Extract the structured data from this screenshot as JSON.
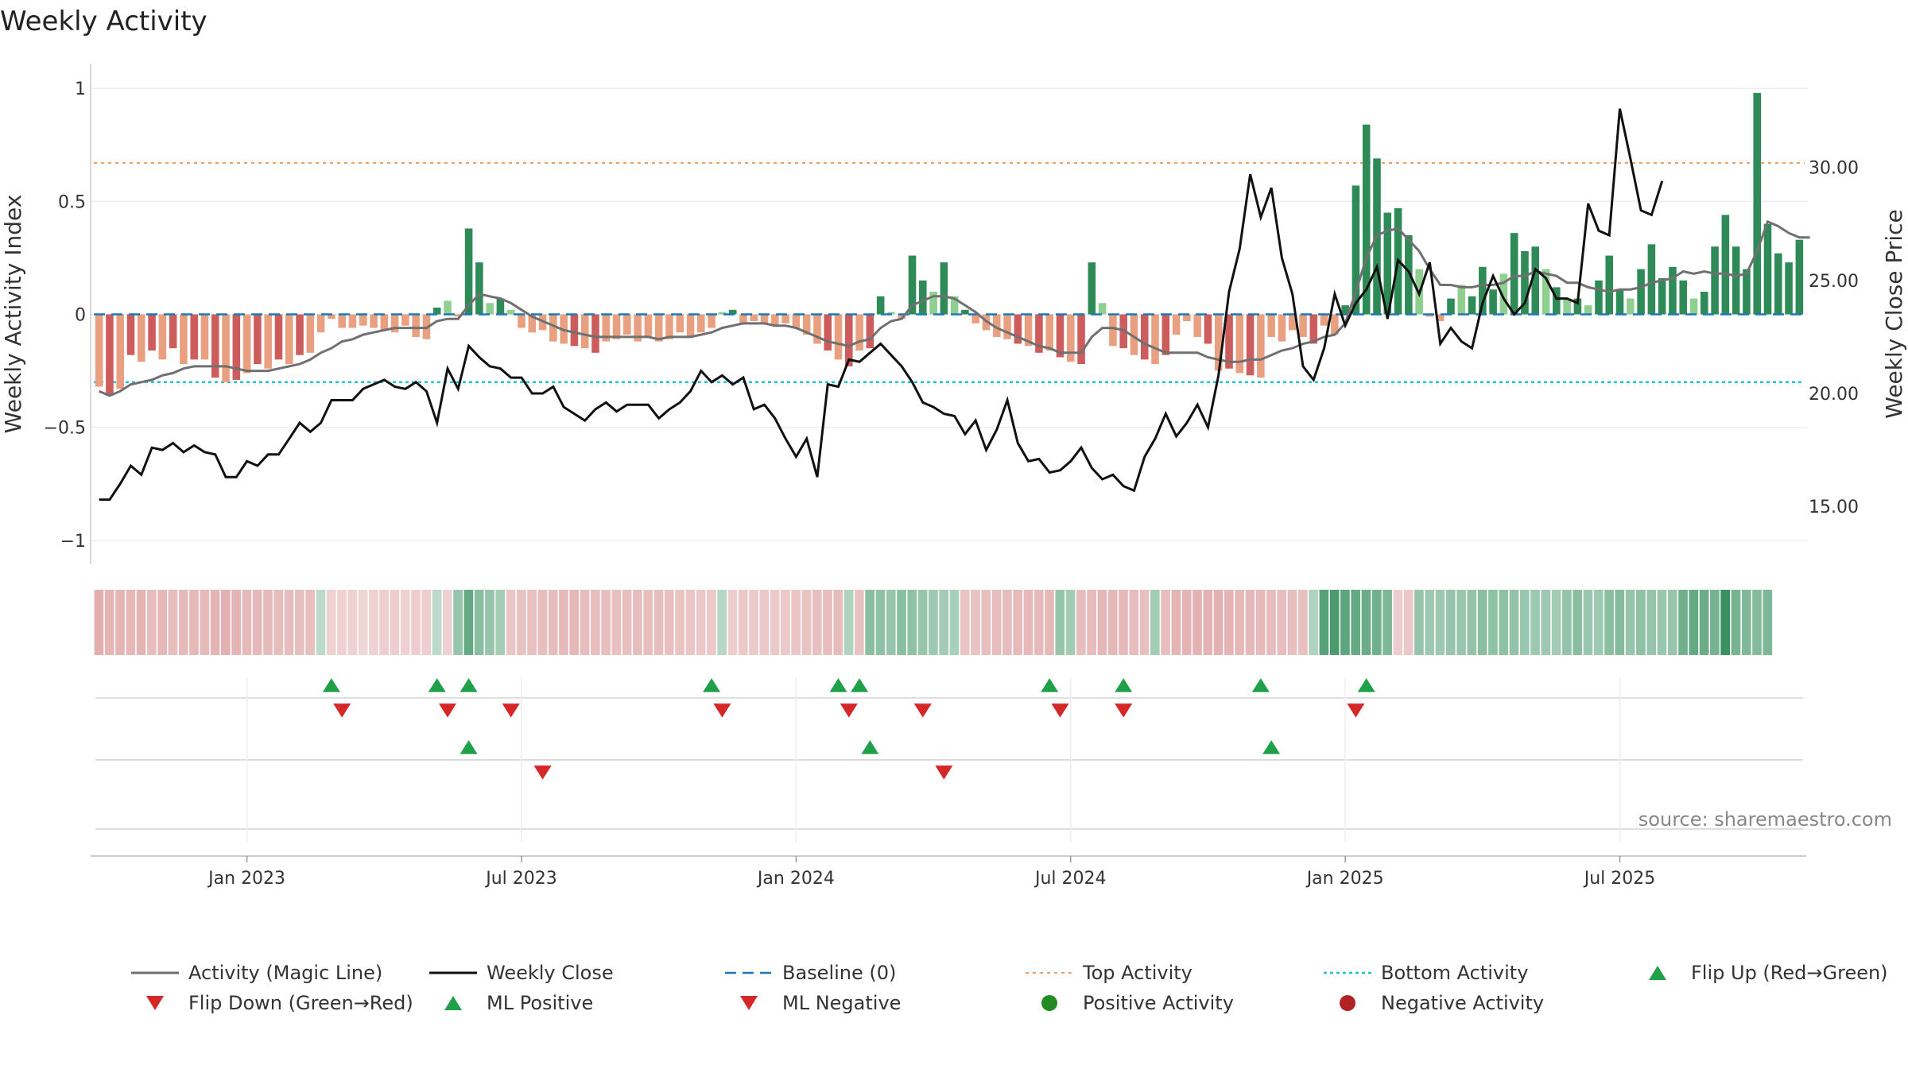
{
  "colors": {
    "magic_line": "#707070",
    "close_line": "#111111",
    "baseline": "#1f77b4",
    "top_line": "#f0a060",
    "bottom_line": "#22c4d4",
    "bar_pos_strong": "#2e8b57",
    "bar_pos_light": "#8fcf8f",
    "bar_neg_strong": "#cd5c5c",
    "bar_neg_light": "#e9a080",
    "marker_up": "#21a04a",
    "marker_down": "#d62728",
    "dot_pos": "#228b22",
    "dot_neg": "#b22222"
  },
  "chart_data": {
    "type": "bar+line",
    "title": "Weekly Activity",
    "ylabel": "Weekly Activity Index",
    "y2label": "Weekly Close Price",
    "ylim": [
      -1.05,
      1.05
    ],
    "y2lim": [
      13.0,
      34.0
    ],
    "y_ticks": [
      1,
      0.5,
      0,
      -0.5,
      -1
    ],
    "y_tick_labels": [
      "1",
      "0.5",
      "0",
      "−0.5",
      "−1"
    ],
    "y2_ticks": [
      30,
      25,
      20,
      15
    ],
    "y2_tick_labels": [
      "30.00",
      "25.00",
      "20.00",
      "15.00"
    ],
    "x_ticks": [
      {
        "label": "Jan 2023",
        "week": 14
      },
      {
        "label": "Jul 2023",
        "week": 40
      },
      {
        "label": "Jan 2024",
        "week": 66
      },
      {
        "label": "Jul 2024",
        "week": 92
      },
      {
        "label": "Jan 2025",
        "week": 118
      },
      {
        "label": "Jul 2025",
        "week": 144
      }
    ],
    "top_activity": 0.67,
    "bottom_activity": -0.3,
    "baseline": 0,
    "activity": [
      -0.32,
      -0.36,
      -0.33,
      -0.18,
      -0.21,
      -0.16,
      -0.2,
      -0.15,
      -0.22,
      -0.2,
      -0.2,
      -0.28,
      -0.3,
      -0.29,
      -0.26,
      -0.22,
      -0.24,
      -0.2,
      -0.22,
      -0.18,
      -0.17,
      -0.08,
      -0.02,
      -0.06,
      -0.06,
      -0.05,
      -0.06,
      -0.07,
      -0.08,
      -0.05,
      -0.1,
      -0.11,
      0.03,
      0.06,
      -0.01,
      0.38,
      0.23,
      0.05,
      0.07,
      0.02,
      -0.06,
      -0.08,
      -0.07,
      -0.12,
      -0.13,
      -0.14,
      -0.15,
      -0.17,
      -0.12,
      -0.11,
      -0.09,
      -0.12,
      -0.1,
      -0.12,
      -0.11,
      -0.08,
      -0.1,
      -0.08,
      -0.06,
      0.01,
      0.02,
      -0.04,
      -0.03,
      -0.04,
      -0.05,
      -0.04,
      -0.06,
      -0.09,
      -0.13,
      -0.16,
      -0.2,
      -0.23,
      -0.16,
      -0.15,
      0.08,
      0.01,
      -0.02,
      0.26,
      0.15,
      0.1,
      0.23,
      0.08,
      0.02,
      -0.04,
      -0.07,
      -0.1,
      -0.11,
      -0.13,
      -0.14,
      -0.17,
      -0.16,
      -0.19,
      -0.21,
      -0.22,
      0.23,
      0.05,
      -0.14,
      -0.15,
      -0.18,
      -0.2,
      -0.22,
      -0.18,
      -0.09,
      -0.03,
      -0.1,
      -0.13,
      -0.25,
      -0.24,
      -0.26,
      -0.27,
      -0.28,
      -0.1,
      -0.12,
      -0.07,
      -0.1,
      -0.13,
      -0.05,
      -0.09,
      0.04,
      0.57,
      0.84,
      0.69,
      0.45,
      0.47,
      0.35,
      0.2,
      -0.01,
      -0.03,
      0.07,
      0.13,
      0.08,
      0.21,
      0.11,
      0.18,
      0.36,
      0.28,
      0.3,
      0.2,
      0.12,
      0.07,
      0.07,
      0.04,
      0.15,
      0.26,
      0.11,
      0.07,
      0.2,
      0.31,
      0.16,
      0.21,
      0.15,
      0.07,
      0.1,
      0.3,
      0.44,
      0.3,
      0.2,
      0.98,
      0.4,
      0.27,
      0.23,
      0.33
    ],
    "magic_line": [
      -0.34,
      -0.36,
      -0.34,
      -0.31,
      -0.3,
      -0.29,
      -0.27,
      -0.26,
      -0.24,
      -0.23,
      -0.23,
      -0.23,
      -0.23,
      -0.24,
      -0.25,
      -0.25,
      -0.25,
      -0.24,
      -0.23,
      -0.22,
      -0.2,
      -0.17,
      -0.15,
      -0.12,
      -0.11,
      -0.09,
      -0.08,
      -0.07,
      -0.06,
      -0.06,
      -0.06,
      -0.06,
      -0.03,
      -0.02,
      -0.02,
      0.04,
      0.09,
      0.08,
      0.07,
      0.05,
      0.02,
      -0.01,
      -0.03,
      -0.05,
      -0.07,
      -0.08,
      -0.09,
      -0.1,
      -0.1,
      -0.1,
      -0.1,
      -0.1,
      -0.1,
      -0.11,
      -0.1,
      -0.1,
      -0.1,
      -0.09,
      -0.08,
      -0.06,
      -0.05,
      -0.04,
      -0.04,
      -0.04,
      -0.05,
      -0.05,
      -0.06,
      -0.08,
      -0.1,
      -0.12,
      -0.13,
      -0.14,
      -0.12,
      -0.11,
      -0.06,
      -0.03,
      -0.02,
      0.04,
      0.06,
      0.08,
      0.08,
      0.07,
      0.04,
      0.01,
      -0.03,
      -0.06,
      -0.08,
      -0.1,
      -0.12,
      -0.14,
      -0.15,
      -0.17,
      -0.17,
      -0.17,
      -0.1,
      -0.06,
      -0.06,
      -0.07,
      -0.1,
      -0.13,
      -0.15,
      -0.17,
      -0.17,
      -0.17,
      -0.17,
      -0.19,
      -0.2,
      -0.21,
      -0.21,
      -0.2,
      -0.2,
      -0.18,
      -0.16,
      -0.15,
      -0.13,
      -0.12,
      -0.1,
      -0.09,
      -0.04,
      0.1,
      0.25,
      0.35,
      0.37,
      0.38,
      0.33,
      0.28,
      0.2,
      0.13,
      0.13,
      0.12,
      0.12,
      0.13,
      0.13,
      0.14,
      0.17,
      0.17,
      0.19,
      0.18,
      0.17,
      0.14,
      0.14,
      0.12,
      0.11,
      0.1,
      0.11,
      0.11,
      0.12,
      0.14,
      0.15,
      0.16,
      0.19,
      0.18,
      0.19,
      0.18,
      0.18,
      0.17,
      0.18,
      0.28,
      0.41,
      0.39,
      0.36,
      0.34,
      0.34
    ],
    "close": [
      15.3,
      15.3,
      16.0,
      16.8,
      16.4,
      17.6,
      17.5,
      17.8,
      17.4,
      17.7,
      17.4,
      17.3,
      16.3,
      16.3,
      17.0,
      16.8,
      17.3,
      17.3,
      18.0,
      18.7,
      18.3,
      18.7,
      19.7,
      19.7,
      19.7,
      20.2,
      20.4,
      20.6,
      20.3,
      20.2,
      20.5,
      20.1,
      18.7,
      21.1,
      20.2,
      22.1,
      21.6,
      21.2,
      21.1,
      20.7,
      20.7,
      20.0,
      20.0,
      20.3,
      19.4,
      19.1,
      18.8,
      19.3,
      19.6,
      19.2,
      19.5,
      19.5,
      19.5,
      18.9,
      19.3,
      19.6,
      20.1,
      21.0,
      20.5,
      20.8,
      20.4,
      20.7,
      19.3,
      19.5,
      18.9,
      18.0,
      17.2,
      18.0,
      16.3,
      20.4,
      20.3,
      21.5,
      21.4,
      21.8,
      22.2,
      21.7,
      21.2,
      20.5,
      19.6,
      19.4,
      19.1,
      19.0,
      18.2,
      18.8,
      17.5,
      18.4,
      19.7,
      17.8,
      17.0,
      17.1,
      16.5,
      16.6,
      17.0,
      17.6,
      16.7,
      16.2,
      16.4,
      15.9,
      15.7,
      17.2,
      18.0,
      19.1,
      18.1,
      18.7,
      19.5,
      18.5,
      20.8,
      24.5,
      26.4,
      29.7,
      27.8,
      29.1,
      26.0,
      24.4,
      21.2,
      20.6,
      22.0,
      24.4,
      23.0,
      24.0,
      24.6,
      25.6,
      23.3,
      25.9,
      25.4,
      24.4,
      25.8,
      22.2,
      22.9,
      22.3,
      22.0,
      24.0,
      25.2,
      24.2,
      23.5,
      24.0,
      25.5,
      25.1,
      24.2,
      24.2,
      24.0,
      28.4,
      27.2,
      27.0,
      32.6,
      30.4,
      28.1,
      27.9,
      29.4
    ],
    "color_strip": [
      [
        -0.35,
        -0.3,
        -0.3,
        -0.28,
        -0.3,
        -0.25,
        -0.28,
        -0.25,
        -0.27,
        -0.28,
        -0.27,
        -0.3,
        -0.33,
        -0.3,
        -0.28,
        -0.28,
        -0.27,
        -0.26,
        -0.25,
        -0.24,
        -0.24,
        0.1,
        -0.12,
        -0.12,
        -0.12,
        -0.1,
        -0.12,
        -0.14,
        -0.15,
        -0.12,
        -0.15,
        -0.15,
        0.1,
        -0.12,
        0.25,
        0.45,
        0.3,
        0.25,
        0.2,
        -0.2,
        -0.22,
        -0.23,
        -0.25,
        -0.26,
        -0.27,
        -0.28,
        -0.26,
        -0.25,
        -0.24,
        -0.23,
        -0.24,
        -0.25,
        -0.24,
        -0.25,
        -0.23,
        -0.22,
        -0.2,
        -0.18,
        -0.18,
        0.12,
        -0.15,
        -0.18,
        -0.17,
        -0.18,
        -0.17,
        -0.18,
        -0.2,
        -0.22,
        -0.24,
        -0.25,
        -0.26,
        0.15,
        -0.22,
        0.3,
        0.28,
        0.25,
        0.3,
        0.28,
        0.25,
        0.22,
        0.2,
        0.18,
        -0.2,
        -0.22,
        -0.24,
        -0.25,
        -0.26,
        -0.27,
        -0.28,
        -0.27,
        -0.28,
        0.25,
        0.2,
        -0.25,
        -0.26,
        -0.28,
        -0.28,
        -0.28,
        -0.26,
        -0.24,
        0.2,
        -0.25,
        -0.3,
        -0.31,
        -0.32,
        -0.32,
        -0.33,
        -0.3,
        -0.28,
        -0.27,
        -0.27,
        -0.26,
        -0.25,
        -0.24,
        -0.23,
        0.15,
        0.5,
        0.55,
        0.48,
        0.45,
        0.42,
        0.4,
        0.35,
        -0.15,
        -0.18,
        0.25,
        0.22,
        0.22,
        0.25,
        0.24,
        0.26,
        0.3,
        0.28,
        0.28,
        0.26,
        0.24,
        0.22,
        0.22,
        0.2,
        0.26,
        0.3,
        0.24,
        0.22,
        0.3,
        0.32,
        0.25,
        0.28,
        0.25,
        0.24,
        0.25,
        0.4,
        0.45,
        0.42,
        0.38,
        0.65,
        0.38,
        0.34,
        0.32,
        0.35
      ]
    ],
    "markers": {
      "row1_up": [
        22,
        32,
        35,
        58,
        70,
        72,
        90,
        97,
        110,
        120
      ],
      "row1_down": [
        23,
        33,
        39,
        59,
        71,
        78,
        91,
        97,
        119
      ],
      "row2_up": [
        35,
        73,
        111
      ],
      "row2_down": [
        42,
        80
      ]
    },
    "legend": [
      {
        "label": "Activity (Magic Line)",
        "kind": "line-solid-grey"
      },
      {
        "label": "Weekly Close",
        "kind": "line-solid-black"
      },
      {
        "label": "Baseline (0)",
        "kind": "line-dashed-blue"
      },
      {
        "label": "Top Activity",
        "kind": "line-dotted-orange"
      },
      {
        "label": "Bottom Activity",
        "kind": "line-dotted-cyan"
      },
      {
        "label": "Flip Up (Red→Green)",
        "kind": "tri-up-green"
      },
      {
        "label": "Flip Down (Green→Red)",
        "kind": "tri-down-red"
      },
      {
        "label": "ML Positive",
        "kind": "tri-up-green"
      },
      {
        "label": "ML Negative",
        "kind": "tri-down-red"
      },
      {
        "label": "Positive Activity",
        "kind": "dot-green"
      },
      {
        "label": "Negative Activity",
        "kind": "dot-red"
      }
    ],
    "source": "source: sharemaestro.com"
  }
}
